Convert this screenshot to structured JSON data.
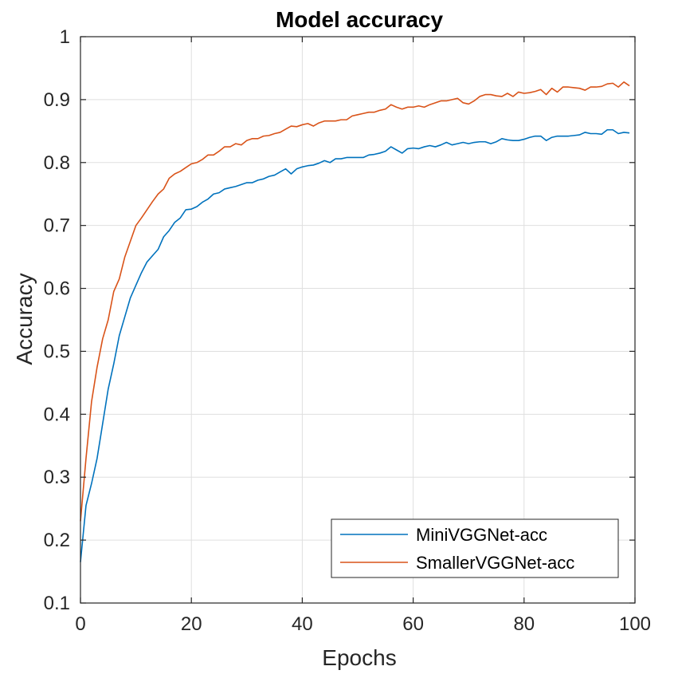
{
  "chart_data": {
    "type": "line",
    "title": "Model accuracy",
    "xlabel": "Epochs",
    "ylabel": "Accuracy",
    "xlim": [
      0,
      100
    ],
    "ylim": [
      0.1,
      1
    ],
    "xticks": [
      0,
      20,
      40,
      60,
      80,
      100
    ],
    "yticks": [
      0.1,
      0.2,
      0.3,
      0.4,
      0.5,
      0.6,
      0.7,
      0.8,
      0.9,
      1
    ],
    "ytick_labels": [
      "0.1",
      "0.2",
      "0.3",
      "0.4",
      "0.5",
      "0.6",
      "0.7",
      "0.8",
      "0.9",
      "1"
    ],
    "xtick_labels": [
      "0",
      "20",
      "40",
      "60",
      "80",
      "100"
    ],
    "grid": true,
    "legend_position": "bottom-right",
    "x": [
      0,
      1,
      2,
      3,
      4,
      5,
      6,
      7,
      8,
      9,
      10,
      11,
      12,
      13,
      14,
      15,
      16,
      17,
      18,
      19,
      20,
      21,
      22,
      23,
      24,
      25,
      26,
      27,
      28,
      29,
      30,
      31,
      32,
      33,
      34,
      35,
      36,
      37,
      38,
      39,
      40,
      41,
      42,
      43,
      44,
      45,
      46,
      47,
      48,
      49,
      50,
      51,
      52,
      53,
      54,
      55,
      56,
      57,
      58,
      59,
      60,
      61,
      62,
      63,
      64,
      65,
      66,
      67,
      68,
      69,
      70,
      71,
      72,
      73,
      74,
      75,
      76,
      77,
      78,
      79,
      80,
      81,
      82,
      83,
      84,
      85,
      86,
      87,
      88,
      89,
      90,
      91,
      92,
      93,
      94,
      95,
      96,
      97,
      98,
      99
    ],
    "series": [
      {
        "name": "MiniVGGNet-acc",
        "color": "#0072bd",
        "values": [
          0.165,
          0.255,
          0.29,
          0.33,
          0.385,
          0.44,
          0.48,
          0.525,
          0.555,
          0.585,
          0.605,
          0.625,
          0.642,
          0.652,
          0.662,
          0.682,
          0.692,
          0.705,
          0.712,
          0.725,
          0.726,
          0.73,
          0.737,
          0.742,
          0.75,
          0.752,
          0.758,
          0.76,
          0.762,
          0.765,
          0.768,
          0.768,
          0.772,
          0.774,
          0.778,
          0.78,
          0.785,
          0.79,
          0.782,
          0.79,
          0.793,
          0.795,
          0.796,
          0.799,
          0.803,
          0.8,
          0.806,
          0.806,
          0.808,
          0.808,
          0.808,
          0.808,
          0.812,
          0.813,
          0.815,
          0.818,
          0.825,
          0.82,
          0.815,
          0.822,
          0.823,
          0.822,
          0.825,
          0.827,
          0.825,
          0.828,
          0.832,
          0.828,
          0.83,
          0.832,
          0.83,
          0.832,
          0.833,
          0.833,
          0.83,
          0.833,
          0.838,
          0.836,
          0.835,
          0.835,
          0.837,
          0.84,
          0.842,
          0.842,
          0.835,
          0.84,
          0.842,
          0.842,
          0.842,
          0.843,
          0.844,
          0.848,
          0.846,
          0.846,
          0.845,
          0.852,
          0.852,
          0.846,
          0.848,
          0.847
        ]
      },
      {
        "name": "SmallerVGGNet-acc",
        "color": "#d95319",
        "values": [
          0.23,
          0.33,
          0.42,
          0.475,
          0.52,
          0.55,
          0.595,
          0.615,
          0.65,
          0.675,
          0.7,
          0.712,
          0.725,
          0.738,
          0.75,
          0.758,
          0.775,
          0.782,
          0.786,
          0.792,
          0.798,
          0.8,
          0.805,
          0.812,
          0.812,
          0.818,
          0.825,
          0.825,
          0.83,
          0.828,
          0.835,
          0.838,
          0.838,
          0.842,
          0.843,
          0.846,
          0.848,
          0.853,
          0.858,
          0.857,
          0.86,
          0.862,
          0.858,
          0.863,
          0.866,
          0.866,
          0.866,
          0.868,
          0.868,
          0.874,
          0.876,
          0.878,
          0.88,
          0.88,
          0.883,
          0.885,
          0.892,
          0.888,
          0.885,
          0.888,
          0.888,
          0.89,
          0.888,
          0.892,
          0.895,
          0.898,
          0.898,
          0.9,
          0.902,
          0.895,
          0.893,
          0.898,
          0.905,
          0.908,
          0.908,
          0.906,
          0.905,
          0.91,
          0.905,
          0.912,
          0.91,
          0.911,
          0.913,
          0.916,
          0.908,
          0.918,
          0.912,
          0.92,
          0.92,
          0.919,
          0.918,
          0.915,
          0.92,
          0.92,
          0.921,
          0.925,
          0.926,
          0.92,
          0.928,
          0.922
        ]
      }
    ]
  }
}
